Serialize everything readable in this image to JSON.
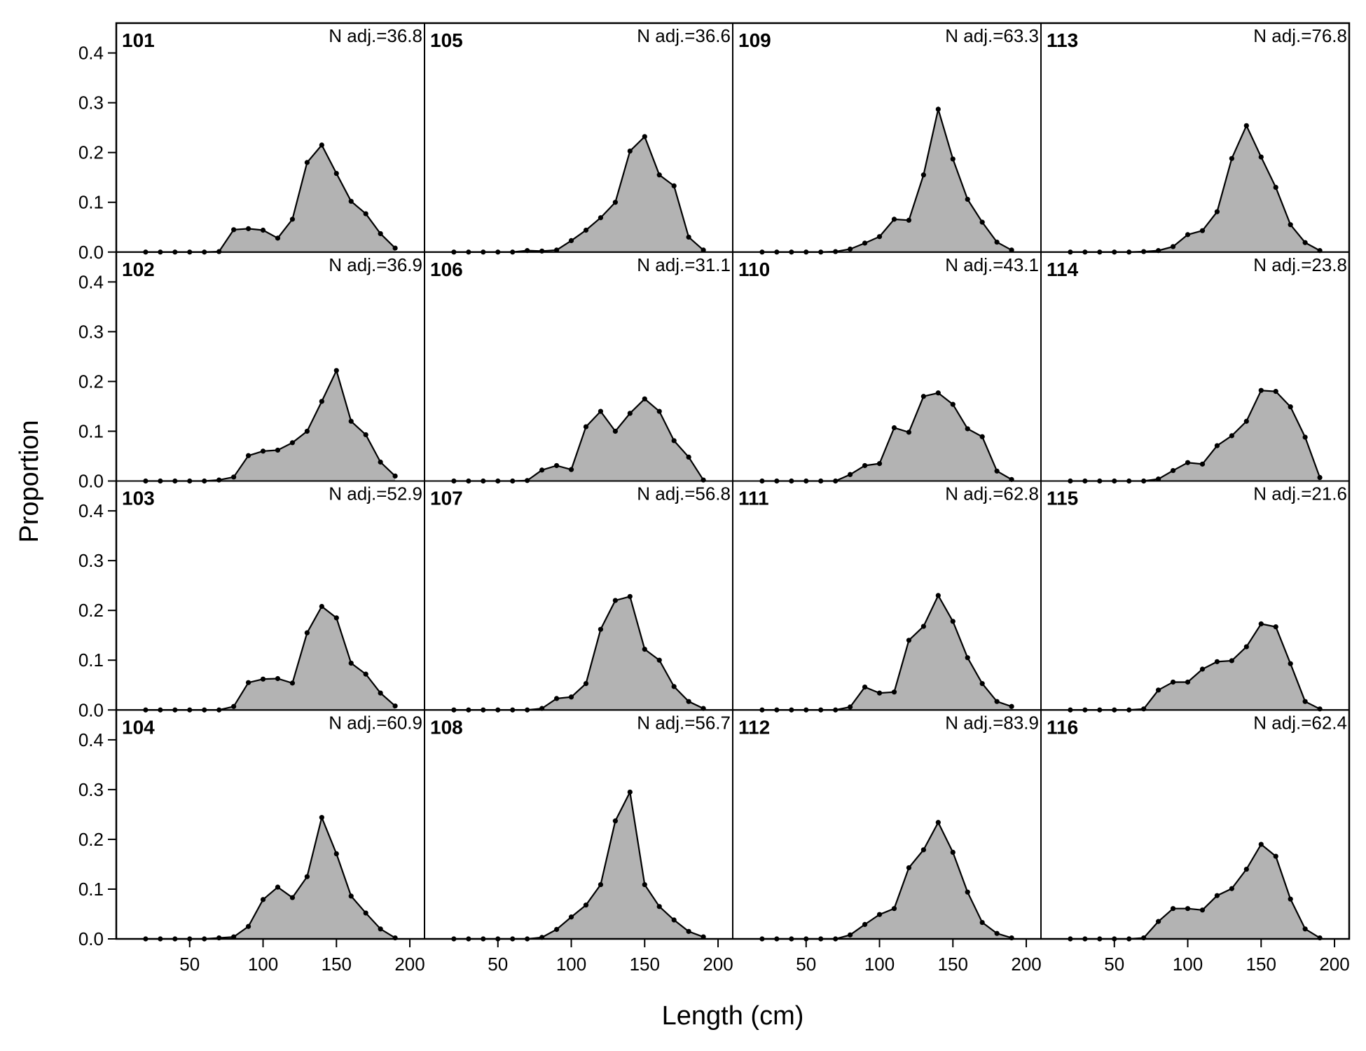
{
  "chart_data": {
    "type": "area",
    "xlabel": "Length (cm)",
    "ylabel": "Proportion",
    "xlim": [
      0,
      210
    ],
    "ylim": [
      0,
      0.46
    ],
    "x_ticks": [
      50,
      100,
      150,
      200
    ],
    "y_ticks": [
      0.0,
      0.1,
      0.2,
      0.3,
      0.4
    ],
    "y_tick_labels": [
      "0.0",
      "0.1",
      "0.2",
      "0.3",
      "0.4"
    ],
    "x": [
      20,
      30,
      40,
      50,
      60,
      70,
      80,
      90,
      100,
      110,
      120,
      130,
      140,
      150,
      160,
      170,
      180,
      190
    ],
    "fill_color": "#b3b3b3",
    "line_color": "#000000",
    "panels": [
      {
        "label": "101",
        "n_label": "N adj.=36.8",
        "values": [
          0,
          0,
          0,
          0,
          0,
          0.001,
          0.045,
          0.047,
          0.044,
          0.028,
          0.066,
          0.18,
          0.215,
          0.158,
          0.102,
          0.077,
          0.037,
          0.008
        ]
      },
      {
        "label": "102",
        "n_label": "N adj.=36.9",
        "values": [
          0,
          0,
          0,
          0,
          0,
          0.002,
          0.008,
          0.051,
          0.06,
          0.062,
          0.077,
          0.1,
          0.16,
          0.222,
          0.12,
          0.093,
          0.038,
          0.01
        ]
      },
      {
        "label": "103",
        "n_label": "N adj.=52.9",
        "values": [
          0,
          0,
          0,
          0,
          0,
          0,
          0.007,
          0.055,
          0.062,
          0.063,
          0.054,
          0.155,
          0.208,
          0.185,
          0.094,
          0.072,
          0.034,
          0.008
        ]
      },
      {
        "label": "104",
        "n_label": "N adj.=60.9",
        "values": [
          0,
          0,
          0,
          0,
          0,
          0.002,
          0.004,
          0.025,
          0.079,
          0.104,
          0.083,
          0.125,
          0.244,
          0.171,
          0.086,
          0.052,
          0.02,
          0.002
        ]
      },
      {
        "label": "105",
        "n_label": "N adj.=36.6",
        "values": [
          0,
          0,
          0,
          0,
          0,
          0.003,
          0.002,
          0.004,
          0.023,
          0.044,
          0.069,
          0.1,
          0.203,
          0.232,
          0.155,
          0.133,
          0.03,
          0.004
        ]
      },
      {
        "label": "106",
        "n_label": "N adj.=31.1",
        "values": [
          0,
          0,
          0,
          0,
          0,
          0.001,
          0.022,
          0.031,
          0.023,
          0.109,
          0.14,
          0.1,
          0.136,
          0.165,
          0.14,
          0.081,
          0.048,
          0.002
        ]
      },
      {
        "label": "107",
        "n_label": "N adj.=56.8",
        "values": [
          0,
          0,
          0,
          0,
          0,
          0,
          0.003,
          0.023,
          0.026,
          0.053,
          0.162,
          0.22,
          0.228,
          0.122,
          0.1,
          0.047,
          0.017,
          0.003
        ]
      },
      {
        "label": "108",
        "n_label": "N adj.=56.7",
        "values": [
          0,
          0,
          0,
          0,
          0,
          0,
          0.003,
          0.019,
          0.044,
          0.068,
          0.109,
          0.237,
          0.295,
          0.109,
          0.065,
          0.038,
          0.015,
          0.004
        ]
      },
      {
        "label": "109",
        "n_label": "N adj.=63.3",
        "values": [
          0,
          0,
          0,
          0,
          0,
          0.001,
          0.006,
          0.018,
          0.031,
          0.066,
          0.064,
          0.155,
          0.287,
          0.187,
          0.106,
          0.06,
          0.02,
          0.004
        ]
      },
      {
        "label": "110",
        "n_label": "N adj.=43.1",
        "values": [
          0,
          0,
          0,
          0,
          0,
          0,
          0.013,
          0.031,
          0.035,
          0.107,
          0.098,
          0.17,
          0.177,
          0.154,
          0.105,
          0.089,
          0.02,
          0.003
        ]
      },
      {
        "label": "111",
        "n_label": "N adj.=62.8",
        "values": [
          0,
          0,
          0,
          0,
          0,
          0,
          0.006,
          0.046,
          0.034,
          0.036,
          0.14,
          0.168,
          0.23,
          0.178,
          0.105,
          0.053,
          0.017,
          0.007
        ]
      },
      {
        "label": "112",
        "n_label": "N adj.=83.9",
        "values": [
          0,
          0,
          0,
          0,
          0,
          0,
          0.008,
          0.029,
          0.049,
          0.061,
          0.143,
          0.179,
          0.234,
          0.174,
          0.094,
          0.033,
          0.011,
          0.002
        ]
      },
      {
        "label": "113",
        "n_label": "N adj.=76.8",
        "values": [
          0,
          0,
          0,
          0,
          0,
          0.001,
          0.003,
          0.011,
          0.035,
          0.043,
          0.081,
          0.188,
          0.254,
          0.191,
          0.13,
          0.055,
          0.019,
          0.003
        ]
      },
      {
        "label": "114",
        "n_label": "N adj.=23.8",
        "values": [
          0,
          0,
          0,
          0,
          0,
          0,
          0.004,
          0.021,
          0.037,
          0.034,
          0.071,
          0.091,
          0.12,
          0.182,
          0.18,
          0.149,
          0.088,
          0.007
        ]
      },
      {
        "label": "115",
        "n_label": "N adj.=21.6",
        "values": [
          0,
          0,
          0,
          0,
          0,
          0.002,
          0.04,
          0.056,
          0.056,
          0.082,
          0.097,
          0.099,
          0.127,
          0.173,
          0.167,
          0.093,
          0.017,
          0.002
        ]
      },
      {
        "label": "116",
        "n_label": "N adj.=62.4",
        "values": [
          0,
          0,
          0,
          0,
          0,
          0.002,
          0.035,
          0.061,
          0.061,
          0.058,
          0.087,
          0.101,
          0.14,
          0.19,
          0.166,
          0.08,
          0.02,
          0.002
        ]
      }
    ]
  }
}
